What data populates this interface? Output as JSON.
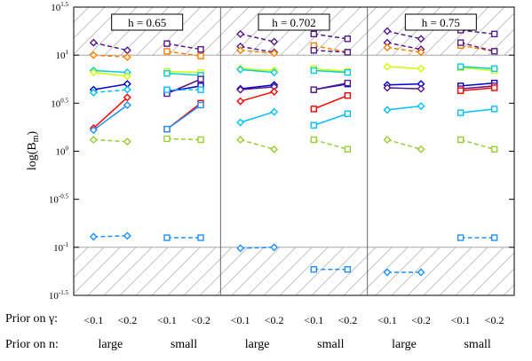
{
  "chart_data": {
    "type": "line",
    "ylabel": "log(B",
    "ylabel_sub": "m",
    "ylabel_tail": ")",
    "ylim": [
      -1.5,
      1.5
    ],
    "yticks": [
      {
        "value": 1.5,
        "label": "10",
        "exp": "1.5"
      },
      {
        "value": 1.0,
        "label": "10",
        "exp": "1"
      },
      {
        "value": 0.5,
        "label": "10",
        "exp": "0.5"
      },
      {
        "value": 0.0,
        "label": "10",
        "exp": "0"
      },
      {
        "value": -0.5,
        "label": "10",
        "exp": "-0.5"
      },
      {
        "value": -1.0,
        "label": "10",
        "exp": "-1"
      },
      {
        "value": -1.5,
        "label": "10",
        "exp": "-1.5"
      }
    ],
    "ytick_labels": [
      "10^1.5",
      "10^1",
      "10^0.5",
      "10^0",
      "10^-0.5",
      "10^-1",
      "10^-1.5"
    ],
    "reference_lines": [
      1.0,
      -1.0
    ],
    "shaded_regions": [
      [
        1.0,
        1.5
      ],
      [
        -1.5,
        -1.0
      ]
    ],
    "x_groups": [
      {
        "prior_n": "large",
        "gamma": [
          "<0.1",
          "<0.2"
        ]
      },
      {
        "prior_n": "small",
        "gamma": [
          "<0.1",
          "<0.2"
        ]
      }
    ],
    "panels": [
      {
        "title": "h = 0.65",
        "series": [
          {
            "group": 0,
            "marker": "diamond",
            "color": "#551a8b",
            "dashed": true,
            "values": [
              1.13,
              1.05
            ]
          },
          {
            "group": 0,
            "marker": "diamond",
            "color": "#ff7f00",
            "dashed": true,
            "values": [
              1.0,
              0.98
            ]
          },
          {
            "group": 0,
            "marker": "diamond",
            "color": "#00ced1",
            "dashed": false,
            "values": [
              0.84,
              0.82
            ]
          },
          {
            "group": 0,
            "marker": "diamond",
            "color": "#ccff00",
            "dashed": false,
            "values": [
              0.82,
              0.78
            ]
          },
          {
            "group": 0,
            "marker": "diamond",
            "color": "#0000cd",
            "dashed": false,
            "values": [
              0.64,
              0.7
            ]
          },
          {
            "group": 0,
            "marker": "diamond",
            "color": "#00bfff",
            "dashed": true,
            "values": [
              0.61,
              0.64
            ]
          },
          {
            "group": 0,
            "marker": "diamond",
            "color": "#ff0000",
            "dashed": false,
            "values": [
              0.24,
              0.56
            ]
          },
          {
            "group": 0,
            "marker": "diamond",
            "color": "#1e90ff",
            "dashed": false,
            "values": [
              0.22,
              0.48
            ]
          },
          {
            "group": 0,
            "marker": "diamond",
            "color": "#9acd32",
            "dashed": true,
            "values": [
              0.12,
              0.1
            ]
          },
          {
            "group": 0,
            "marker": "diamond",
            "color": "#1e90ff",
            "dashed": true,
            "values": [
              -0.89,
              -0.88
            ]
          },
          {
            "group": 1,
            "marker": "square",
            "color": "#551a8b",
            "dashed": true,
            "values": [
              1.12,
              1.06
            ]
          },
          {
            "group": 1,
            "marker": "square",
            "color": "#ff7f00",
            "dashed": true,
            "values": [
              1.04,
              0.99
            ]
          },
          {
            "group": 1,
            "marker": "square",
            "color": "#ccff00",
            "dashed": false,
            "values": [
              0.83,
              0.82
            ]
          },
          {
            "group": 1,
            "marker": "square",
            "color": "#00ced1",
            "dashed": false,
            "values": [
              0.81,
              0.79
            ]
          },
          {
            "group": 1,
            "marker": "square",
            "color": "#0000cd",
            "dashed": false,
            "values": [
              0.62,
              0.68
            ]
          },
          {
            "group": 1,
            "marker": "square",
            "color": "#551a8b",
            "dashed": false,
            "values": [
              0.6,
              0.75
            ]
          },
          {
            "group": 1,
            "marker": "square",
            "color": "#00bfff",
            "dashed": true,
            "values": [
              0.64,
              0.64
            ]
          },
          {
            "group": 1,
            "marker": "square",
            "color": "#ff0000",
            "dashed": false,
            "values": [
              0.23,
              0.5
            ]
          },
          {
            "group": 1,
            "marker": "square",
            "color": "#1e90ff",
            "dashed": false,
            "values": [
              0.23,
              0.48
            ]
          },
          {
            "group": 1,
            "marker": "square",
            "color": "#9acd32",
            "dashed": true,
            "values": [
              0.13,
              0.12
            ]
          },
          {
            "group": 1,
            "marker": "square",
            "color": "#1e90ff",
            "dashed": true,
            "values": [
              -0.9,
              -0.9
            ]
          }
        ]
      },
      {
        "title": "h = 0.702",
        "series": [
          {
            "group": 0,
            "marker": "diamond",
            "color": "#551a8b",
            "dashed": true,
            "values": [
              1.22,
              1.14
            ]
          },
          {
            "group": 0,
            "marker": "diamond",
            "color": "#551a8b",
            "dashed": true,
            "values": [
              1.09,
              1.03
            ]
          },
          {
            "group": 0,
            "marker": "diamond",
            "color": "#ff7f00",
            "dashed": true,
            "values": [
              1.05,
              1.02
            ]
          },
          {
            "group": 0,
            "marker": "diamond",
            "color": "#ccff00",
            "dashed": false,
            "values": [
              0.86,
              0.84
            ]
          },
          {
            "group": 0,
            "marker": "diamond",
            "color": "#00ced1",
            "dashed": false,
            "values": [
              0.85,
              0.82
            ]
          },
          {
            "group": 0,
            "marker": "diamond",
            "color": "#0000cd",
            "dashed": false,
            "values": [
              0.65,
              0.69
            ]
          },
          {
            "group": 0,
            "marker": "diamond",
            "color": "#551a8b",
            "dashed": false,
            "values": [
              0.64,
              0.67
            ]
          },
          {
            "group": 0,
            "marker": "diamond",
            "color": "#ff0000",
            "dashed": false,
            "values": [
              0.52,
              0.62
            ]
          },
          {
            "group": 0,
            "marker": "diamond",
            "color": "#00bfff",
            "dashed": false,
            "values": [
              0.3,
              0.41
            ]
          },
          {
            "group": 0,
            "marker": "diamond",
            "color": "#9acd32",
            "dashed": true,
            "values": [
              0.12,
              0.02
            ]
          },
          {
            "group": 0,
            "marker": "diamond",
            "color": "#1e90ff",
            "dashed": true,
            "values": [
              -1.01,
              -1.0
            ]
          },
          {
            "group": 1,
            "marker": "square",
            "color": "#551a8b",
            "dashed": true,
            "values": [
              1.22,
              1.17
            ]
          },
          {
            "group": 1,
            "marker": "square",
            "color": "#ff7f00",
            "dashed": true,
            "values": [
              1.1,
              1.03
            ]
          },
          {
            "group": 1,
            "marker": "square",
            "color": "#551a8b",
            "dashed": true,
            "values": [
              1.05,
              1.03
            ]
          },
          {
            "group": 1,
            "marker": "square",
            "color": "#ccff00",
            "dashed": false,
            "values": [
              0.86,
              0.83
            ]
          },
          {
            "group": 1,
            "marker": "square",
            "color": "#00ced1",
            "dashed": false,
            "values": [
              0.84,
              0.82
            ]
          },
          {
            "group": 1,
            "marker": "square",
            "color": "#0000cd",
            "dashed": false,
            "values": [
              0.64,
              0.7
            ]
          },
          {
            "group": 1,
            "marker": "square",
            "color": "#551a8b",
            "dashed": false,
            "values": [
              0.64,
              0.71
            ]
          },
          {
            "group": 1,
            "marker": "square",
            "color": "#ff0000",
            "dashed": false,
            "values": [
              0.44,
              0.58
            ]
          },
          {
            "group": 1,
            "marker": "square",
            "color": "#00bfff",
            "dashed": false,
            "values": [
              0.27,
              0.39
            ]
          },
          {
            "group": 1,
            "marker": "square",
            "color": "#9acd32",
            "dashed": true,
            "values": [
              0.12,
              0.02
            ]
          },
          {
            "group": 1,
            "marker": "square",
            "color": "#1e90ff",
            "dashed": true,
            "values": [
              -1.23,
              -1.23
            ]
          }
        ]
      },
      {
        "title": "h = 0.75",
        "series": [
          {
            "group": 0,
            "marker": "diamond",
            "color": "#551a8b",
            "dashed": true,
            "values": [
              1.25,
              1.17
            ]
          },
          {
            "group": 0,
            "marker": "diamond",
            "color": "#551a8b",
            "dashed": true,
            "values": [
              1.13,
              1.06
            ]
          },
          {
            "group": 0,
            "marker": "diamond",
            "color": "#ff7f00",
            "dashed": true,
            "values": [
              1.08,
              1.03
            ]
          },
          {
            "group": 0,
            "marker": "diamond",
            "color": "#ccff00",
            "dashed": false,
            "values": [
              0.88,
              0.86
            ]
          },
          {
            "group": 0,
            "marker": "diamond",
            "color": "#0000cd",
            "dashed": false,
            "values": [
              0.69,
              0.7
            ]
          },
          {
            "group": 0,
            "marker": "diamond",
            "color": "#551a8b",
            "dashed": false,
            "values": [
              0.66,
              0.65
            ]
          },
          {
            "group": 0,
            "marker": "diamond",
            "color": "#00bfff",
            "dashed": false,
            "values": [
              0.43,
              0.47
            ]
          },
          {
            "group": 0,
            "marker": "diamond",
            "color": "#9acd32",
            "dashed": true,
            "values": [
              0.12,
              0.02
            ]
          },
          {
            "group": 0,
            "marker": "diamond",
            "color": "#1e90ff",
            "dashed": true,
            "values": [
              -1.26,
              -1.26
            ]
          },
          {
            "group": 1,
            "marker": "square",
            "color": "#551a8b",
            "dashed": true,
            "values": [
              1.26,
              1.22
            ]
          },
          {
            "group": 1,
            "marker": "square",
            "color": "#ff7f00",
            "dashed": true,
            "values": [
              1.1,
              1.04
            ]
          },
          {
            "group": 1,
            "marker": "square",
            "color": "#551a8b",
            "dashed": true,
            "values": [
              1.13,
              1.04
            ]
          },
          {
            "group": 1,
            "marker": "square",
            "color": "#ccff00",
            "dashed": false,
            "values": [
              0.87,
              0.84
            ]
          },
          {
            "group": 1,
            "marker": "square",
            "color": "#00ced1",
            "dashed": false,
            "values": [
              0.88,
              0.86
            ]
          },
          {
            "group": 1,
            "marker": "square",
            "color": "#0000cd",
            "dashed": false,
            "values": [
              0.68,
              0.71
            ]
          },
          {
            "group": 1,
            "marker": "square",
            "color": "#551a8b",
            "dashed": false,
            "values": [
              0.65,
              0.68
            ]
          },
          {
            "group": 1,
            "marker": "square",
            "color": "#ff0000",
            "dashed": false,
            "values": [
              0.63,
              0.66
            ]
          },
          {
            "group": 1,
            "marker": "square",
            "color": "#00bfff",
            "dashed": false,
            "values": [
              0.4,
              0.44
            ]
          },
          {
            "group": 1,
            "marker": "square",
            "color": "#9acd32",
            "dashed": true,
            "values": [
              0.12,
              0.02
            ]
          },
          {
            "group": 1,
            "marker": "square",
            "color": "#1e90ff",
            "dashed": true,
            "values": [
              -0.9,
              -0.9
            ]
          }
        ]
      }
    ]
  },
  "rows": {
    "gamma_title": "Prior on γ:",
    "n_title": "Prior on n:",
    "gamma_labels": [
      "<0.1",
      "<0.2",
      "<0.1",
      "<0.2",
      "<0.1",
      "<0.2",
      "<0.1",
      "<0.2",
      "<0.1",
      "<0.2",
      "<0.1",
      "<0.2"
    ],
    "n_labels": [
      "large",
      "small",
      "large",
      "small",
      "large",
      "small"
    ]
  }
}
